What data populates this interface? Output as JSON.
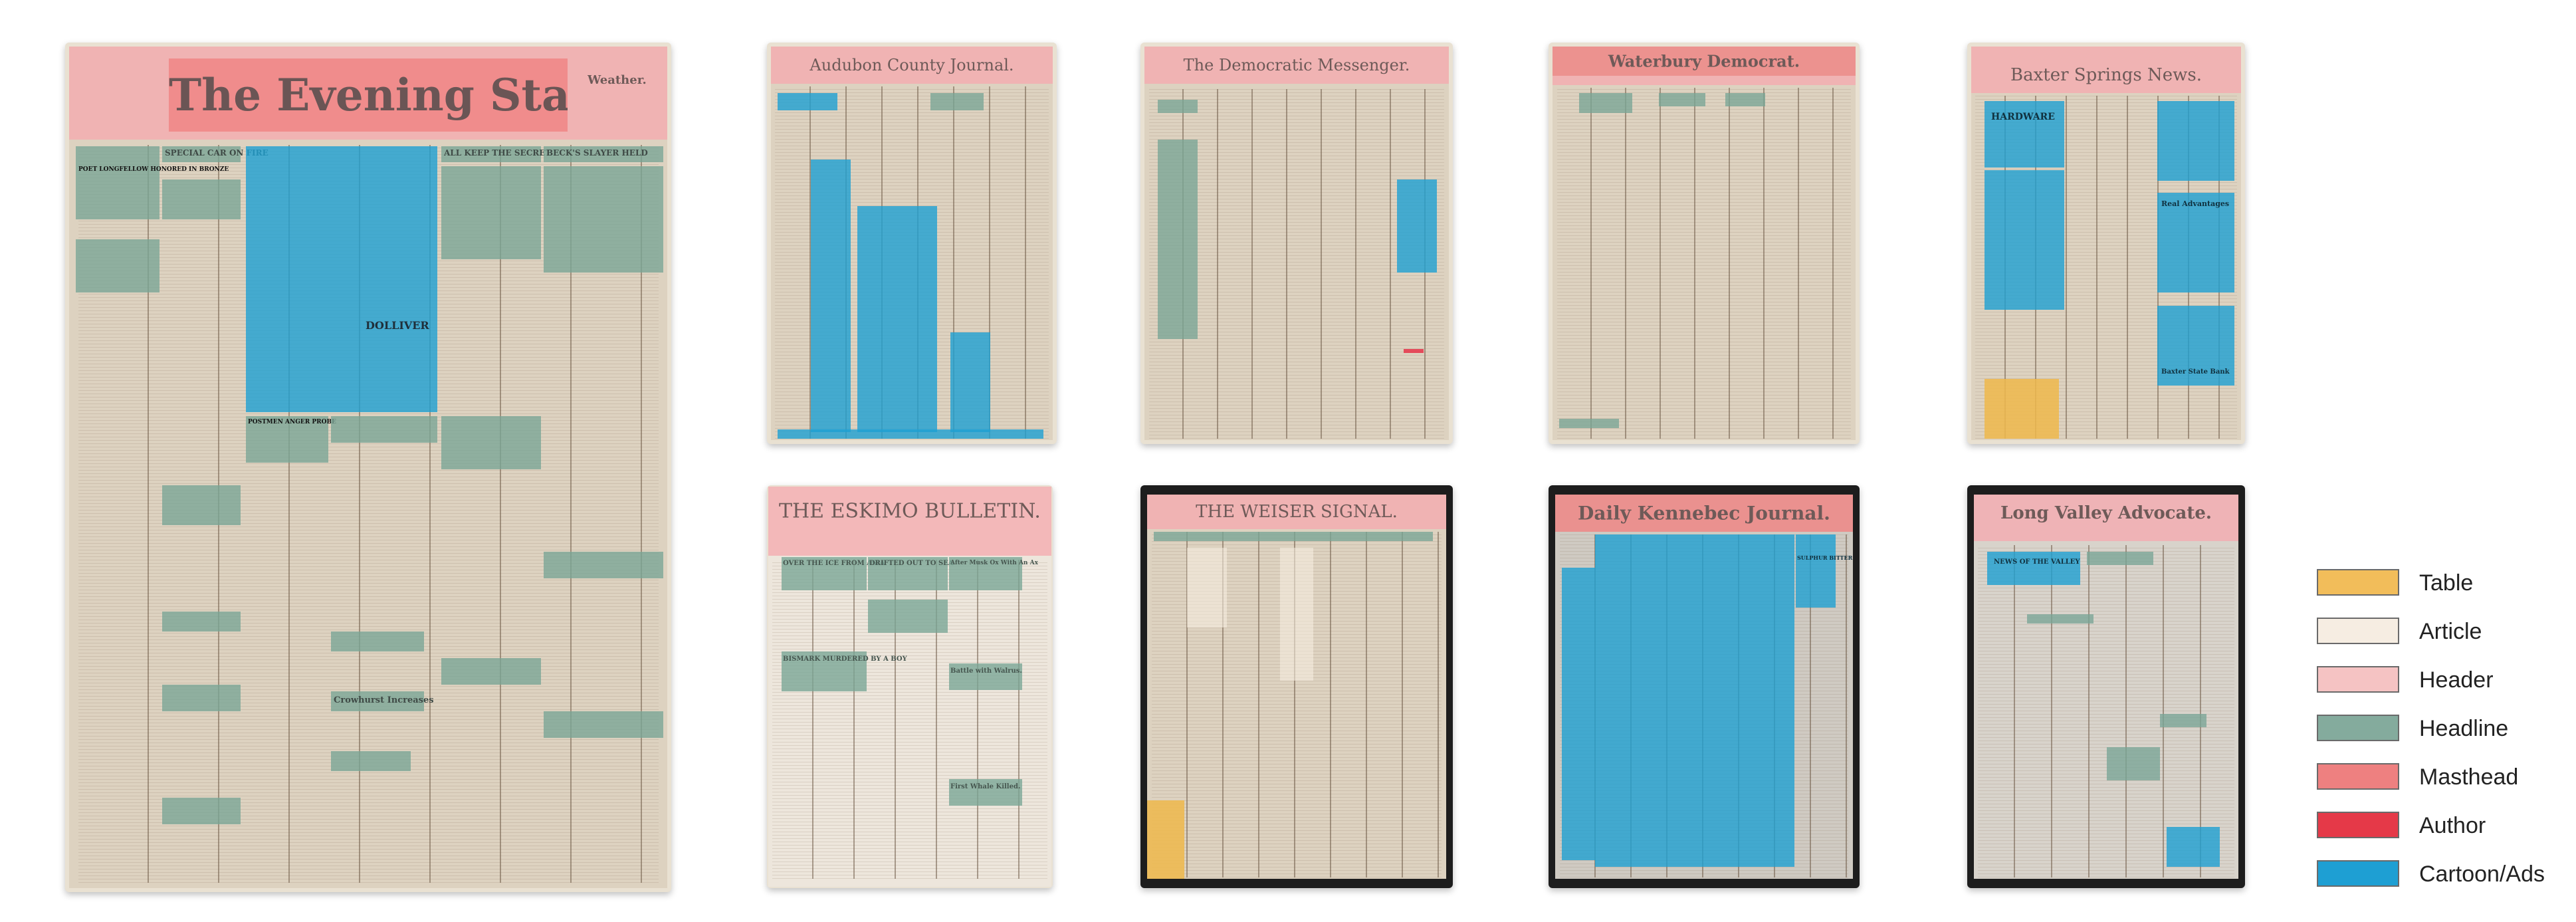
{
  "pages": [
    {
      "title": "The Evening Star.",
      "headlines": [
        "POET LONGFELLOW HONORED IN BRONZE",
        "SPECIAL CAR ON FIRE",
        "ALL KEEP THE SECRET",
        "BECK'S SLAYER HELD",
        "POSTMEN ANGER PROBE",
        "DOLLIVER",
        "Crowhurst Increases"
      ],
      "header_side": "Weather."
    },
    {
      "title": "Audubon County Journal."
    },
    {
      "title": "The Democratic Messenger."
    },
    {
      "title": "Waterbury Democrat."
    },
    {
      "title": "Baxter Springs News.",
      "headlines": [
        "HARDWARE",
        "Real Advantages",
        "Baxter State Bank"
      ]
    },
    {
      "title": "THE ESKIMO BULLETIN.",
      "headlines": [
        "OVER THE ICE FROM ASIA",
        "DRIFTED OUT TO SEA",
        "After Musk Ox With An Ax",
        "BISMARK MURDERED BY A BOY",
        "Battle with Walrus.",
        "First Whale Killed."
      ]
    },
    {
      "title": "THE WEISER SIGNAL."
    },
    {
      "title": "Daily Kennebec Journal.",
      "headlines": [
        "SULPHUR BITTERS"
      ]
    },
    {
      "title": "Long Valley Advocate.",
      "headlines": [
        "NEWS OF THE VALLEY"
      ]
    }
  ],
  "legend": {
    "items": [
      {
        "label": "Table",
        "color": "#f2bd5a"
      },
      {
        "label": "Article",
        "color": "#f6ede2"
      },
      {
        "label": "Header",
        "color": "#f5c3c3"
      },
      {
        "label": "Headline",
        "color": "#84ab9d"
      },
      {
        "label": "Masthead",
        "color": "#ee8080"
      },
      {
        "label": "Author",
        "color": "#e53948"
      },
      {
        "label": "Cartoon/Ads",
        "color": "#1e9fd3"
      }
    ]
  }
}
